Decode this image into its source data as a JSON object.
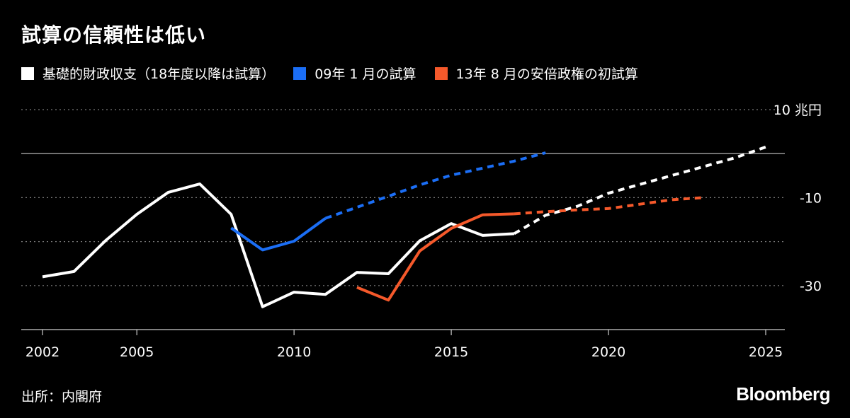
{
  "title": "試算の信頼性は低い",
  "source": "出所：内閣府",
  "brand": "Bloomberg",
  "chart_data": {
    "type": "line",
    "title": "試算の信頼性は低い",
    "y_unit": "兆円",
    "xlim": [
      2002,
      2025
    ],
    "ylim": [
      -40,
      10
    ],
    "x_ticks": [
      2002,
      2005,
      2010,
      2015,
      2020,
      2025
    ],
    "y_ticks": [
      {
        "value": 10,
        "label": "10 兆円"
      },
      {
        "value": -10,
        "label": "-10"
      },
      {
        "value": -30,
        "label": "-30"
      }
    ],
    "gridlines": [
      10,
      0,
      -10,
      -20,
      -30
    ],
    "series": [
      {
        "name": "基礎的財政収支（18年度以降は試算）",
        "color": "#ffffff",
        "solid": [
          [
            2002,
            -28
          ],
          [
            2003,
            -26.8
          ],
          [
            2004,
            -19.8
          ],
          [
            2005,
            -13.8
          ],
          [
            2006,
            -8.8
          ],
          [
            2007,
            -6.9
          ],
          [
            2008,
            -13.8
          ],
          [
            2009,
            -34.8
          ],
          [
            2010,
            -31.5
          ],
          [
            2011,
            -32
          ],
          [
            2012,
            -27
          ],
          [
            2013,
            -27.3
          ],
          [
            2014,
            -19.8
          ],
          [
            2015,
            -15.9
          ],
          [
            2016,
            -18.6
          ],
          [
            2017,
            -18.2
          ]
        ],
        "dashed": [
          [
            2017,
            -18.2
          ],
          [
            2018,
            -14
          ],
          [
            2019,
            -12
          ],
          [
            2020,
            -9
          ],
          [
            2021,
            -7
          ],
          [
            2022,
            -5
          ],
          [
            2023,
            -3
          ],
          [
            2024,
            -1
          ],
          [
            2025,
            1.5
          ]
        ]
      },
      {
        "name": "09年 1 月の試算",
        "color": "#1b6ef5",
        "solid": [
          [
            2008,
            -16.9
          ],
          [
            2009,
            -21.9
          ],
          [
            2010,
            -19.9
          ],
          [
            2011,
            -14.7
          ]
        ],
        "dashed": [
          [
            2011,
            -14.7
          ],
          [
            2012,
            -12.2
          ],
          [
            2013,
            -9.7
          ],
          [
            2014,
            -7.1
          ],
          [
            2015,
            -4.9
          ],
          [
            2016,
            -3.3
          ],
          [
            2017,
            -1.7
          ],
          [
            2018,
            0.2
          ]
        ]
      },
      {
        "name": "13年 8 月の安倍政権の初試算",
        "color": "#f5592b",
        "solid": [
          [
            2012,
            -30.4
          ],
          [
            2013,
            -33.3
          ],
          [
            2014,
            -22.1
          ],
          [
            2015,
            -17
          ],
          [
            2016,
            -13.9
          ],
          [
            2017,
            -13.7
          ]
        ],
        "dashed": [
          [
            2017,
            -13.7
          ],
          [
            2018,
            -13.2
          ],
          [
            2019,
            -12.8
          ],
          [
            2020,
            -12.5
          ],
          [
            2021,
            -11.5
          ],
          [
            2022,
            -10.5
          ],
          [
            2023,
            -10
          ]
        ]
      }
    ],
    "grid": true,
    "legend_position": "top"
  }
}
